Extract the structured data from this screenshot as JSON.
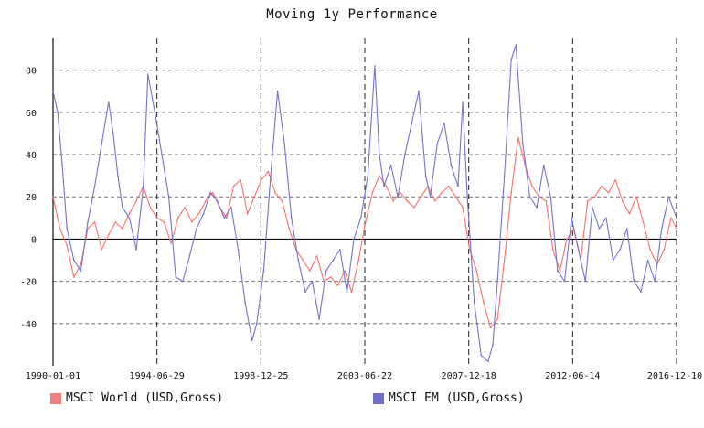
{
  "chart_data": {
    "type": "line",
    "title": "Moving 1y Performance",
    "xlabel": "",
    "ylabel": "",
    "x_ticks": [
      "1990-01-01",
      "1994-06-29",
      "1998-12-25",
      "2003-06-22",
      "2007-12-18",
      "2012-06-14",
      "2016-12-10"
    ],
    "xlim": [
      1990.0,
      2016.94
    ],
    "ylim": [
      -60,
      95
    ],
    "y_ticks": [
      -40,
      -20,
      0,
      20,
      40,
      60,
      80
    ],
    "legend_position": "bottom",
    "series": [
      {
        "name": "MSCI World (USD,Gross)",
        "color": "#ff6666",
        "legend_color": "#f08080",
        "x": [
          1990.0,
          1990.3,
          1990.6,
          1990.9,
          1991.2,
          1991.5,
          1991.8,
          1992.1,
          1992.4,
          1992.7,
          1993.0,
          1993.3,
          1993.6,
          1993.9,
          1994.2,
          1994.5,
          1994.8,
          1995.1,
          1995.4,
          1995.7,
          1996.0,
          1996.3,
          1996.6,
          1996.9,
          1997.2,
          1997.5,
          1997.8,
          1998.1,
          1998.4,
          1998.7,
          1999.0,
          1999.3,
          1999.6,
          1999.9,
          2000.2,
          2000.5,
          2000.8,
          2001.1,
          2001.4,
          2001.7,
          2002.0,
          2002.3,
          2002.6,
          2002.9,
          2003.2,
          2003.5,
          2003.8,
          2004.1,
          2004.4,
          2004.7,
          2005.0,
          2005.3,
          2005.6,
          2005.9,
          2006.2,
          2006.5,
          2006.8,
          2007.1,
          2007.4,
          2007.7,
          2008.0,
          2008.3,
          2008.6,
          2008.9,
          2009.2,
          2009.5,
          2009.8,
          2010.1,
          2010.4,
          2010.7,
          2011.0,
          2011.3,
          2011.6,
          2011.9,
          2012.2,
          2012.5,
          2012.8,
          2013.1,
          2013.4,
          2013.7,
          2014.0,
          2014.3,
          2014.6,
          2014.9,
          2015.2,
          2015.5,
          2015.8,
          2016.1,
          2016.4,
          2016.7,
          2016.94
        ],
        "values": [
          20,
          5,
          -3,
          -18,
          -12,
          5,
          8,
          -5,
          2,
          8,
          5,
          12,
          18,
          25,
          15,
          10,
          8,
          -2,
          10,
          15,
          8,
          12,
          18,
          22,
          15,
          10,
          25,
          28,
          12,
          20,
          28,
          32,
          22,
          18,
          5,
          -5,
          -10,
          -15,
          -8,
          -20,
          -18,
          -22,
          -15,
          -25,
          -10,
          8,
          22,
          30,
          25,
          18,
          22,
          18,
          15,
          20,
          25,
          18,
          22,
          25,
          20,
          15,
          -5,
          -15,
          -30,
          -42,
          -38,
          -10,
          22,
          48,
          35,
          25,
          20,
          18,
          -5,
          -15,
          0,
          5,
          -10,
          18,
          20,
          25,
          22,
          28,
          18,
          12,
          20,
          8,
          -5,
          -12,
          -5,
          10,
          5
        ]
      },
      {
        "name": "MSCI EM (USD,Gross)",
        "color": "#6b6bcc",
        "legend_color": "#6f6fc9",
        "x": [
          1990.0,
          1990.2,
          1990.4,
          1990.6,
          1990.9,
          1991.2,
          1991.5,
          1991.8,
          1992.1,
          1992.4,
          1992.6,
          1992.8,
          1993.0,
          1993.3,
          1993.6,
          1993.9,
          1994.1,
          1994.4,
          1994.7,
          1995.0,
          1995.3,
          1995.6,
          1995.9,
          1996.2,
          1996.5,
          1996.8,
          1997.1,
          1997.4,
          1997.7,
          1998.0,
          1998.3,
          1998.6,
          1998.8,
          1999.1,
          1999.4,
          1999.7,
          2000.0,
          2000.3,
          2000.6,
          2000.9,
          2001.2,
          2001.5,
          2001.8,
          2002.1,
          2002.4,
          2002.7,
          2003.0,
          2003.3,
          2003.6,
          2003.9,
          2004.1,
          2004.3,
          2004.6,
          2004.9,
          2005.2,
          2005.5,
          2005.8,
          2006.1,
          2006.3,
          2006.6,
          2006.9,
          2007.2,
          2007.5,
          2007.7,
          2007.9,
          2008.2,
          2008.5,
          2008.8,
          2009.0,
          2009.2,
          2009.5,
          2009.8,
          2010.0,
          2010.3,
          2010.6,
          2010.9,
          2011.2,
          2011.5,
          2011.8,
          2012.1,
          2012.4,
          2012.7,
          2013.0,
          2013.3,
          2013.6,
          2013.9,
          2014.2,
          2014.5,
          2014.8,
          2015.1,
          2015.4,
          2015.7,
          2016.0,
          2016.3,
          2016.6,
          2016.94
        ],
        "values": [
          70,
          60,
          35,
          5,
          -10,
          -15,
          8,
          25,
          45,
          65,
          50,
          30,
          15,
          10,
          -5,
          25,
          78,
          60,
          40,
          20,
          -18,
          -20,
          -8,
          5,
          12,
          22,
          18,
          10,
          15,
          -5,
          -30,
          -48,
          -40,
          -15,
          30,
          70,
          45,
          10,
          -10,
          -25,
          -20,
          -38,
          -15,
          -10,
          -5,
          -25,
          0,
          10,
          30,
          82,
          40,
          25,
          35,
          20,
          40,
          55,
          70,
          30,
          20,
          45,
          55,
          35,
          25,
          65,
          20,
          -30,
          -55,
          -58,
          -50,
          -20,
          30,
          85,
          92,
          45,
          20,
          15,
          35,
          20,
          -15,
          -20,
          10,
          -5,
          -20,
          15,
          5,
          10,
          -10,
          -5,
          5,
          -20,
          -25,
          -10,
          -20,
          5,
          20,
          10
        ]
      }
    ]
  }
}
